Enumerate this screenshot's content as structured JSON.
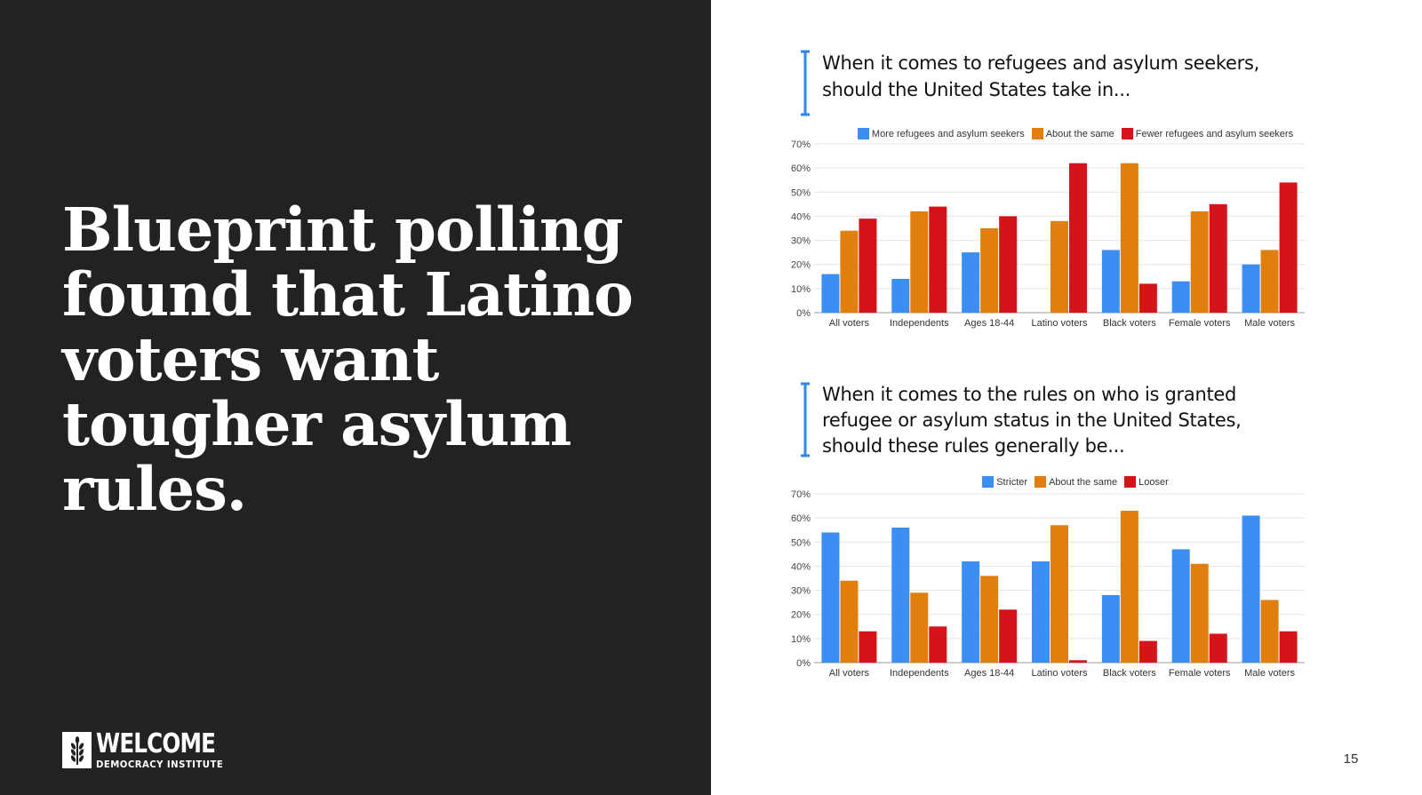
{
  "headline": "Blueprint polling found that Latino voters want tougher asylum rules.",
  "logo": {
    "name": "WELCOME",
    "subtitle": "DEMOCRACY INSTITUTE"
  },
  "page_number": "15",
  "colors": {
    "panel": "#222222",
    "blue": "#3b8ff2",
    "orange": "#e07f0d",
    "red": "#d41419",
    "bracket": "#2f86e8"
  },
  "chart_data": [
    {
      "type": "bar",
      "title": "When it comes to refugees and asylum seekers, should the United States take in...",
      "title_lines": [
        "When it comes to refugees and asylum seekers,",
        "should the United States take in..."
      ],
      "categories": [
        "All voters",
        "Independents",
        "Ages 18-44",
        "Latino voters",
        "Black voters",
        "Female voters",
        "Male voters"
      ],
      "series": [
        {
          "name": "More refugees and asylum seekers",
          "color": "#3b8ff2",
          "values": [
            16,
            14,
            25,
            0,
            26,
            13,
            20
          ]
        },
        {
          "name": "About the same",
          "color": "#e07f0d",
          "values": [
            34,
            42,
            35,
            38,
            62,
            42,
            26
          ]
        },
        {
          "name": "Fewer refugees and asylum seekers",
          "color": "#d41419",
          "values": [
            39,
            44,
            40,
            62,
            12,
            45,
            54
          ]
        }
      ],
      "ylim": [
        0,
        70
      ],
      "yticks": [
        "0%",
        "10%",
        "20%",
        "30%",
        "40%",
        "50%",
        "60%",
        "70%"
      ],
      "legend_position": "top",
      "grid": true
    },
    {
      "type": "bar",
      "title": "When it comes to the rules on who is granted refugee or asylum status in the United States, should these rules generally be...",
      "title_lines": [
        "When it comes to the rules on who is granted",
        "refugee or asylum status in the United States,",
        "should these rules generally be..."
      ],
      "categories": [
        "All voters",
        "Independents",
        "Ages 18-44",
        "Latino voters",
        "Black voters",
        "Female voters",
        "Male voters"
      ],
      "series": [
        {
          "name": "Stricter",
          "color": "#3b8ff2",
          "values": [
            54,
            56,
            42,
            42,
            28,
            47,
            61
          ]
        },
        {
          "name": "About the same",
          "color": "#e07f0d",
          "values": [
            34,
            29,
            36,
            57,
            63,
            41,
            26
          ]
        },
        {
          "name": "Looser",
          "color": "#d41419",
          "values": [
            13,
            15,
            22,
            1,
            9,
            12,
            13
          ]
        }
      ],
      "ylim": [
        0,
        70
      ],
      "yticks": [
        "0%",
        "10%",
        "20%",
        "30%",
        "40%",
        "50%",
        "60%",
        "70%"
      ],
      "legend_position": "top",
      "grid": true
    }
  ]
}
